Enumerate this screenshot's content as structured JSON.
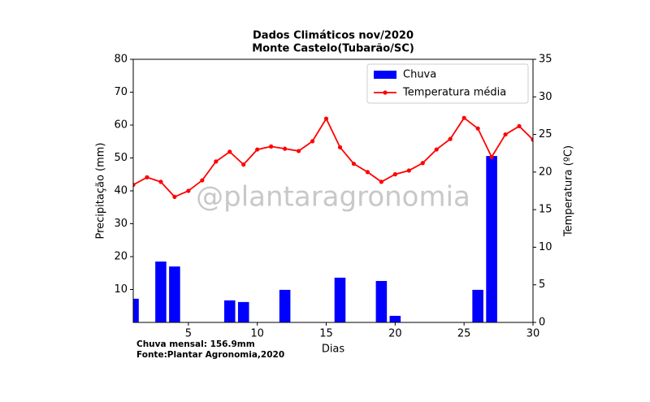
{
  "chart_data": {
    "type": "bar-line",
    "title": "Dados Climáticos nov/2020",
    "subtitle": "Monte Castelo(Tubarão/SC)",
    "x_label": "Dias",
    "y_label": "Precipitação (mm)",
    "y2_label": "Temperatura (ºC)",
    "watermark": "@plantaragronomia",
    "annotations": [
      "Chuva mensal: 156.9mm",
      "Fonte:Plantar Agronomia,2020"
    ],
    "x": [
      1,
      2,
      3,
      4,
      5,
      6,
      7,
      8,
      9,
      10,
      11,
      12,
      13,
      14,
      15,
      16,
      17,
      18,
      19,
      20,
      21,
      22,
      23,
      24,
      25,
      26,
      27,
      28,
      29,
      30
    ],
    "series": [
      {
        "name": "Chuva",
        "color": "#0000ff",
        "kind": "bar",
        "axis": "y",
        "values": [
          7.2,
          0,
          18.5,
          17,
          0,
          0,
          0,
          6.7,
          6.2,
          0,
          0,
          9.9,
          0,
          0,
          0,
          13.6,
          0,
          0,
          12.6,
          2,
          0,
          0,
          0,
          0,
          0,
          9.9,
          50.6,
          0,
          0,
          0
        ]
      },
      {
        "name": "Temperatura média",
        "color": "#ff0000",
        "kind": "line",
        "axis": "y2",
        "values": [
          18.3,
          19.3,
          18.7,
          16.7,
          17.5,
          18.9,
          21.4,
          22.7,
          21.0,
          23.0,
          23.4,
          23.1,
          22.8,
          24.1,
          27.1,
          23.3,
          21.1,
          20.0,
          18.7,
          19.7,
          20.2,
          21.2,
          23.0,
          24.4,
          27.2,
          25.8,
          22.0,
          25.0,
          26.1,
          24.3
        ]
      }
    ],
    "xlim": [
      1,
      30
    ],
    "xticks": [
      5,
      10,
      15,
      20,
      25,
      30
    ],
    "ylim": [
      0,
      80
    ],
    "yticks": [
      10,
      20,
      30,
      40,
      50,
      60,
      70,
      80
    ],
    "y2lim": [
      0,
      35
    ],
    "y2ticks": [
      0,
      5,
      10,
      15,
      20,
      25,
      30,
      35
    ],
    "legend": "upper right"
  }
}
